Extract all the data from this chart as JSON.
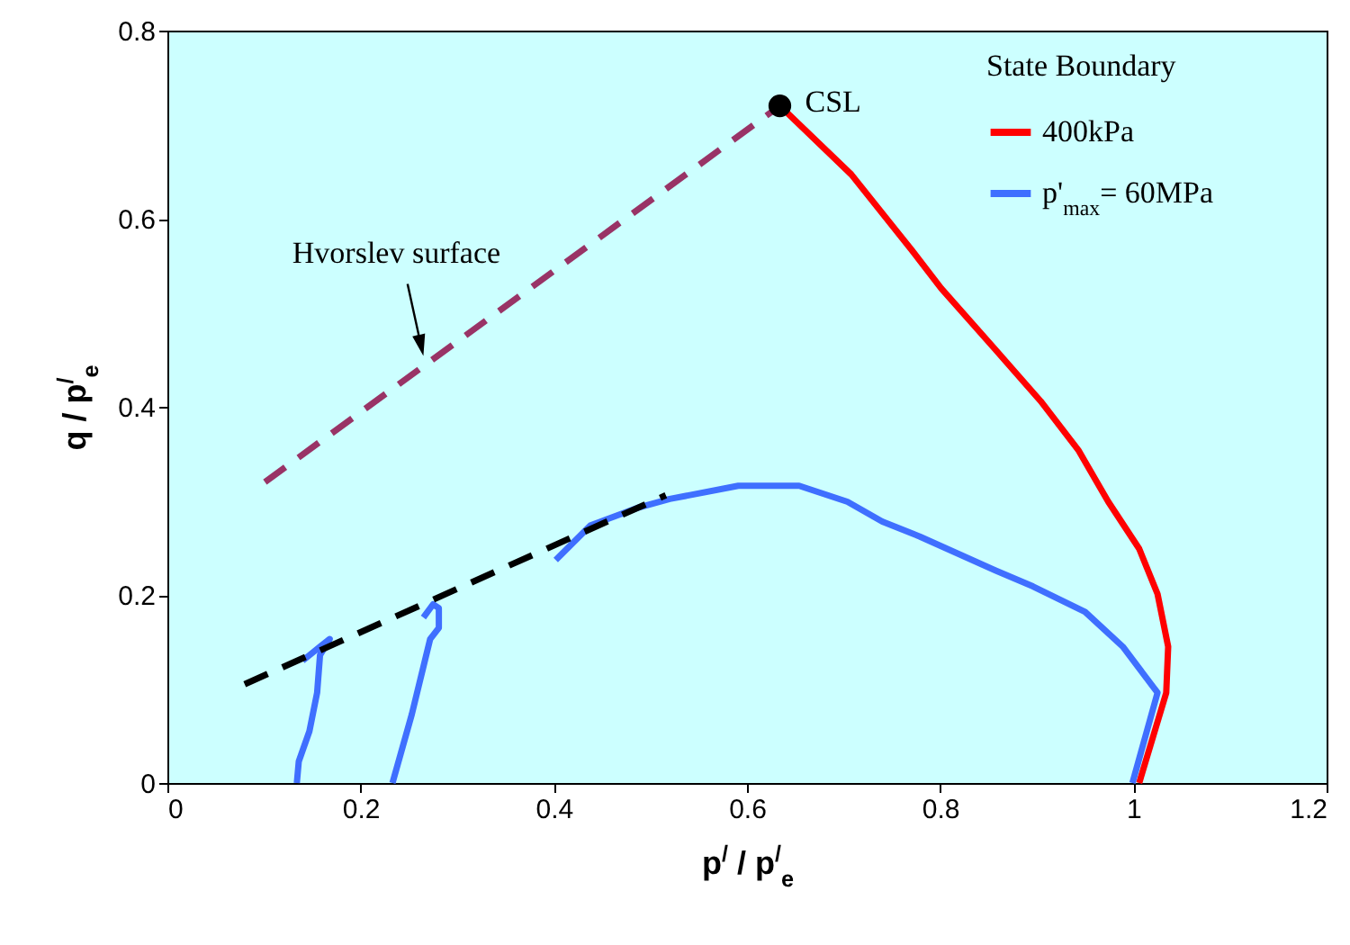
{
  "chart_data": {
    "type": "line",
    "xlabel": "p$^{/}$ / p$^{/}$$_{e}$",
    "ylabel": "q / p$^{/}$$_{e}$",
    "legend_title": "State Boundary",
    "legend": "top right",
    "grid": false,
    "xlim": [
      0,
      1.2
    ],
    "ylim": [
      0,
      0.8
    ],
    "xticks": [
      0,
      0.2,
      0.4,
      0.6,
      0.8,
      1,
      1.2
    ],
    "yticks": [
      0,
      0.2,
      0.4,
      0.6,
      0.8
    ],
    "annotations": [
      {
        "text": "Hvorslev surface",
        "x": 0.265,
        "y": 0.454
      }
    ],
    "series": [
      {
        "name": "400kPa",
        "color": "#ff0000",
        "line_style": "solid",
        "x": [
          0.634,
          0.708,
          0.771,
          0.801,
          0.857,
          0.904,
          0.943,
          0.974,
          1.006,
          1.025,
          1.036,
          1.034,
          1.006
        ],
        "values": [
          0.72,
          0.647,
          0.566,
          0.526,
          0.461,
          0.406,
          0.354,
          0.299,
          0.249,
          0.201,
          0.145,
          0.096,
          0
        ]
      },
      {
        "name": "p'$_{max}$= 60MPa",
        "color": "#3f6fff",
        "line_style": "solid",
        "x": [
          0.999,
          1.025,
          0.989,
          0.95,
          0.896,
          0.857,
          0.779,
          0.74,
          0.704,
          0.654,
          0.591,
          0.52,
          0.488,
          0.438,
          0.402
        ],
        "values": [
          0,
          0.096,
          0.145,
          0.182,
          0.209,
          0.226,
          0.262,
          0.278,
          0.299,
          0.316,
          0.316,
          0.302,
          0.293,
          0.274,
          0.237
        ]
      },
      {
        "color": "#3f6fff",
        "line_style": "solid",
        "x": [
          0.134,
          0.136,
          0.147,
          0.155,
          0.158,
          0.168,
          0.158,
          0.14
        ],
        "values": [
          0,
          0.023,
          0.055,
          0.096,
          0.136,
          0.153,
          0.145,
          0.13
        ]
      },
      {
        "color": "#3f6fff",
        "line_style": "solid",
        "x": [
          0.233,
          0.253,
          0.272,
          0.281,
          0.281,
          0.275,
          0.265
        ],
        "values": [
          0,
          0.073,
          0.153,
          0.165,
          0.186,
          0.19,
          0.176
        ]
      },
      {
        "color": "#993366",
        "line_style": "dashed",
        "x": [
          0.101,
          0.634
        ],
        "values": [
          0.32,
          0.72
        ]
      },
      {
        "color": "#000000",
        "line_style": "dashed",
        "x": [
          0.08,
          0.516
        ],
        "values": [
          0.105,
          0.306
        ]
      },
      {
        "type": "scatter",
        "name": "CSL",
        "color": "#000000",
        "marker": "circle",
        "x": [
          0.634
        ],
        "values": [
          0.72
        ]
      }
    ]
  }
}
